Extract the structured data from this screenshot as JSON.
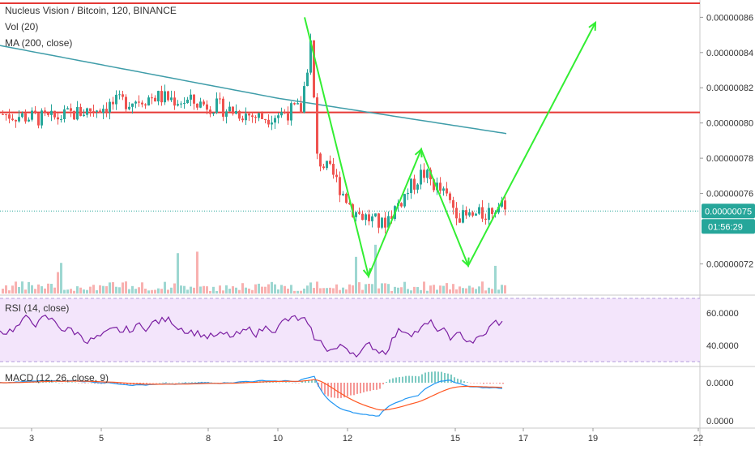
{
  "header": {
    "symbol_line": "Nucleus Vision / Bitcoin, 120, BINANCE",
    "vol_label": "Vol (20)",
    "ma_label": "MA (200, close)"
  },
  "rsi": {
    "label": "RSI (14, close)",
    "ticks": [
      "60.0000",
      "40.0000"
    ]
  },
  "macd": {
    "label": "MACD (12, 26, close, 9)",
    "ticks": [
      "0.0000",
      "0.0000"
    ]
  },
  "badges": {
    "price": "0.00000075",
    "timer": "01:56:29"
  },
  "colors": {
    "up": "#26a69a",
    "down": "#ef5350",
    "ma": "#3f9da9",
    "green_arrow": "#33ee33",
    "red_line": "#e53935",
    "rsi_line": "#7b1fa2",
    "rsi_band": "#f3e5fb",
    "macd_line": "#2196f3",
    "signal_line": "#ff5722"
  },
  "chart_data": [
    {
      "type": "candlestick",
      "title": "Nucleus Vision / Bitcoin, 120, BINANCE",
      "ylim": [
        7.05e-07,
        8.68e-07
      ],
      "y_ticks": [
        "0.00000086",
        "0.00000084",
        "0.00000082",
        "0.00000080",
        "0.00000078",
        "0.00000076",
        "0.00000072"
      ],
      "x_ticks": [
        "3",
        "5",
        "8",
        "10",
        "12",
        "15",
        "17",
        "19",
        "22"
      ],
      "horizontal_lines": [
        8.68e-07,
        8.06e-07
      ],
      "current_price": 7.5e-07,
      "ma200_start": 8.44e-07,
      "ma200_end": 7.94e-07,
      "annotation_path": [
        [
          8.6e-07,
          8.6e-07
        ],
        [
          7.13e-07,
          7.13e-07
        ],
        [
          7.85e-07,
          7.85e-07
        ],
        [
          7.19e-07,
          7.19e-07
        ],
        [
          8.57e-07,
          8.57e-07
        ]
      ]
    },
    {
      "type": "bar",
      "title": "Vol (20)"
    },
    {
      "type": "line",
      "title": "RSI (14, close)",
      "ylim": [
        30,
        70
      ],
      "y_ticks": [
        "60.0000",
        "40.0000"
      ]
    },
    {
      "type": "line",
      "title": "MACD (12, 26, close, 9)",
      "y_ticks": [
        "0.0000",
        "0.0000"
      ]
    }
  ]
}
